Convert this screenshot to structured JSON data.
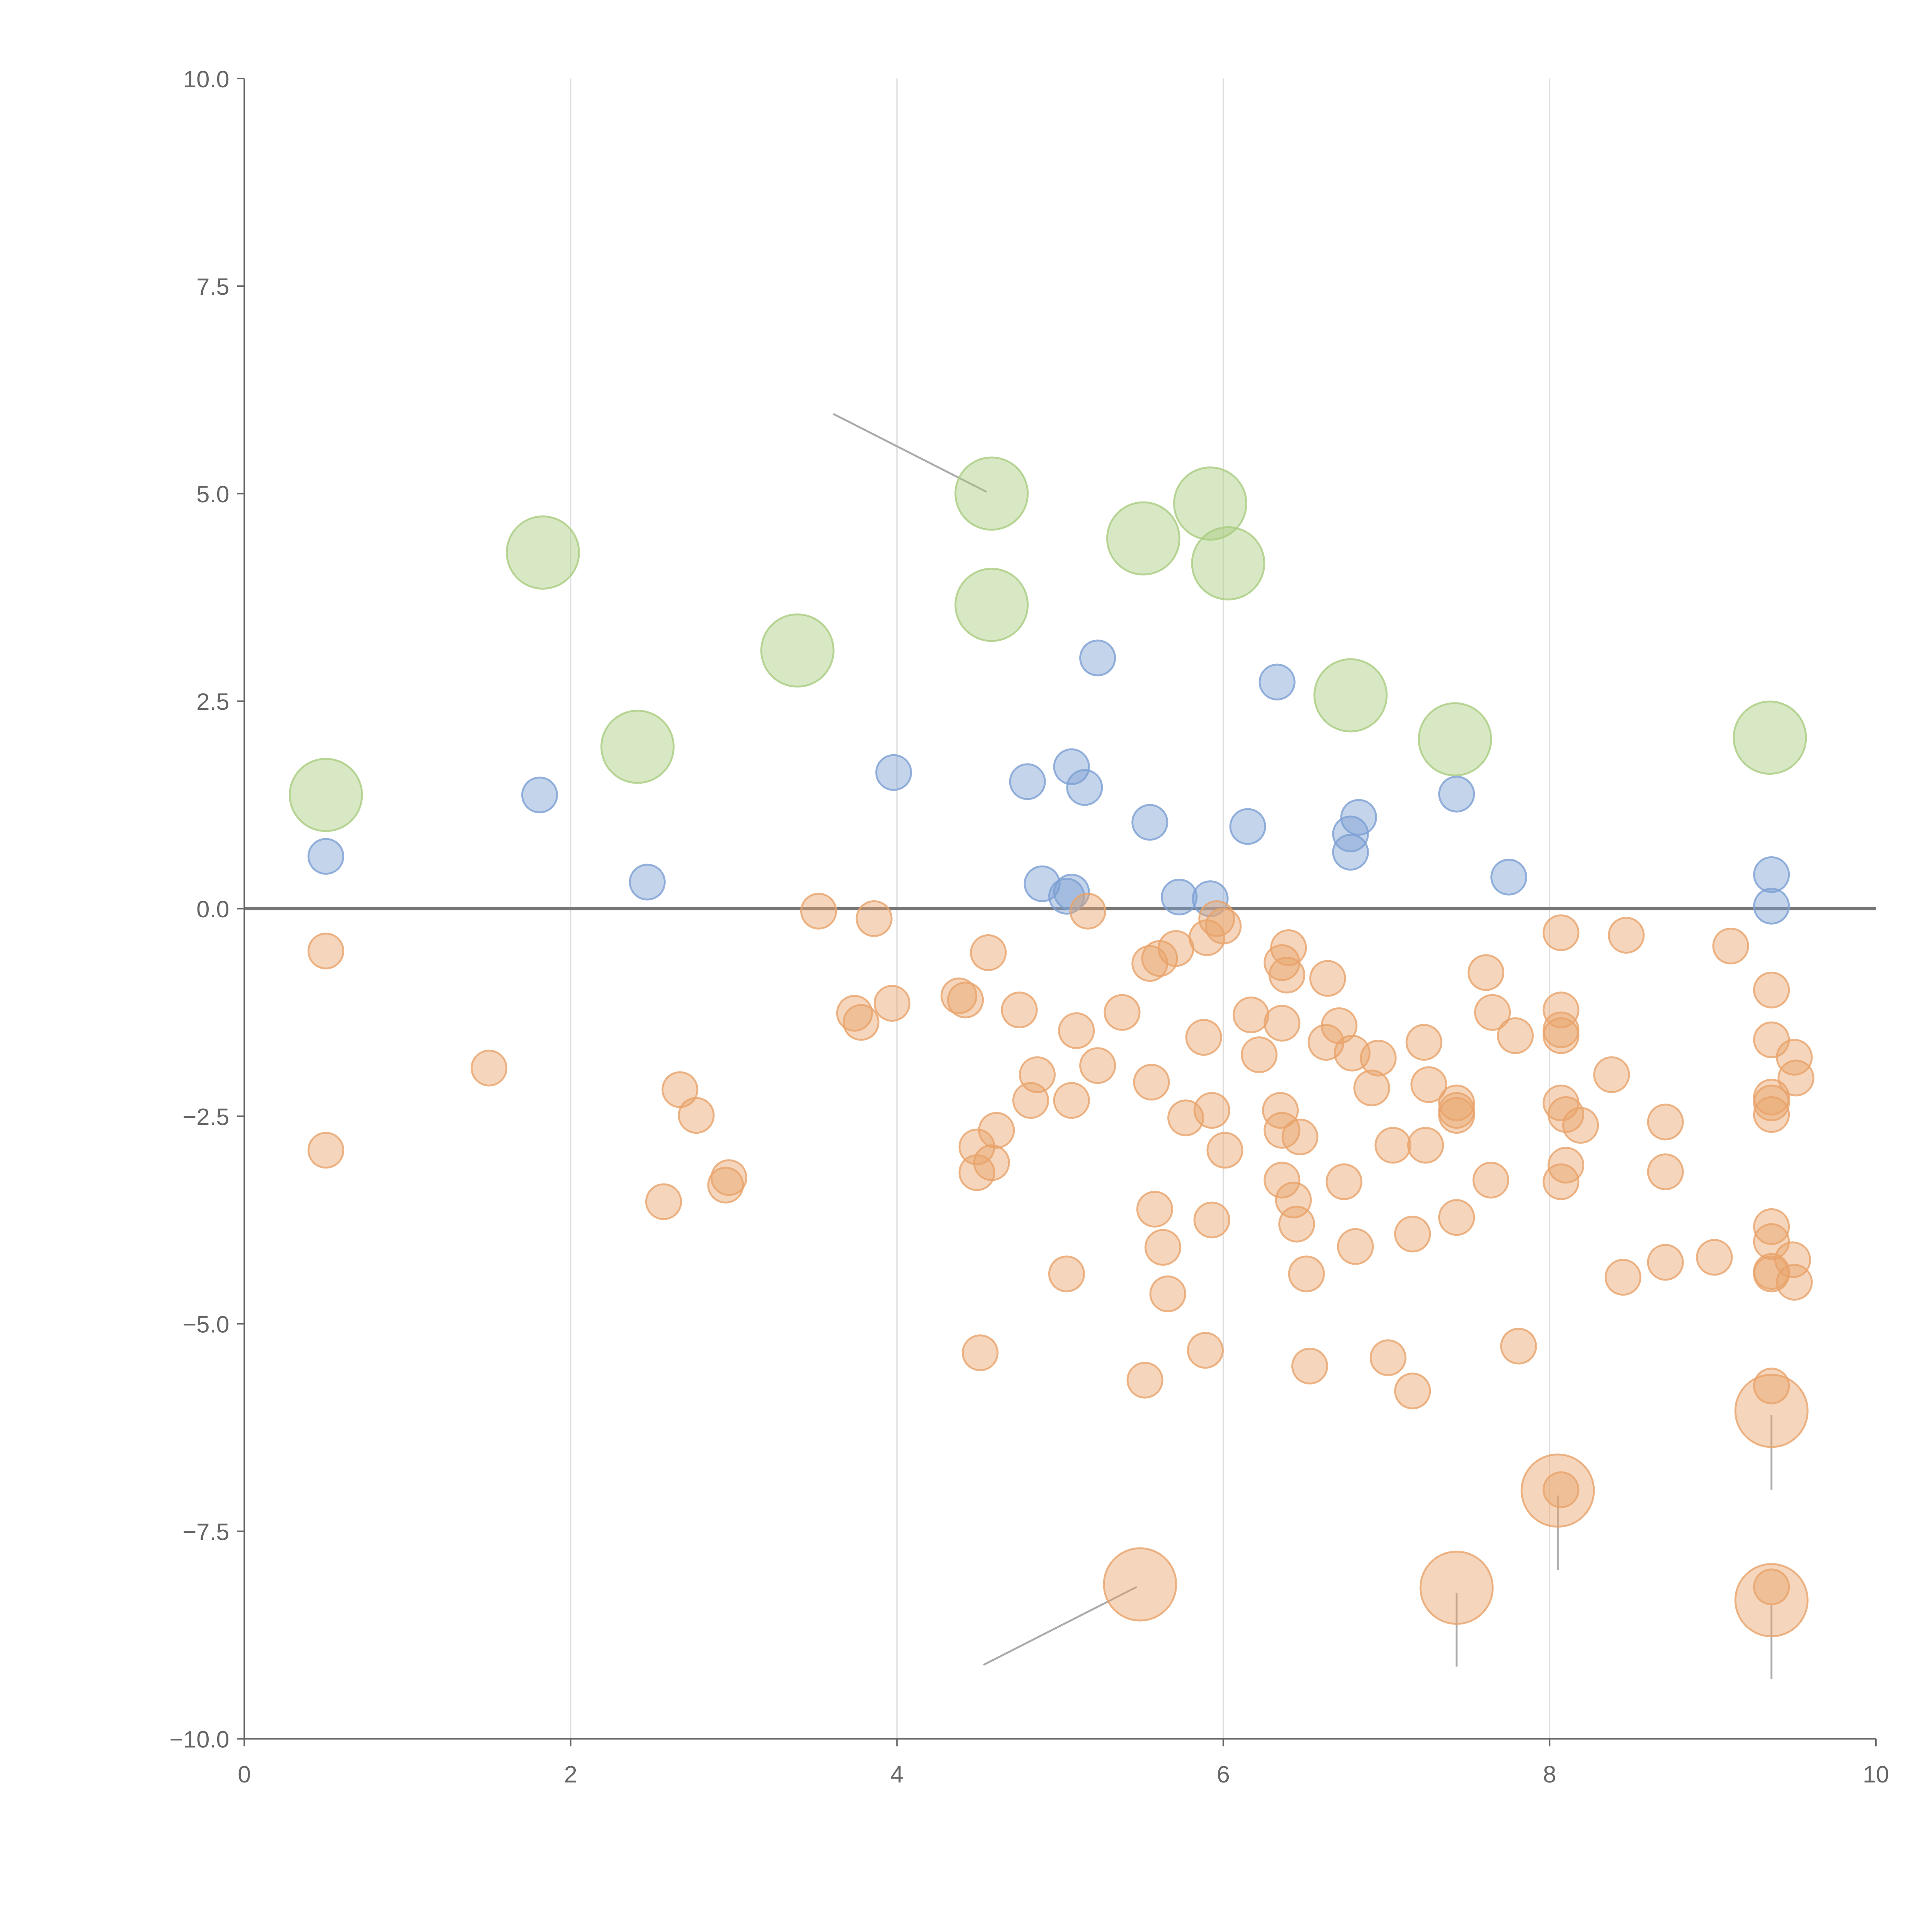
{
  "chart_data": {
    "type": "scatter",
    "title": "",
    "xlabel": "",
    "ylabel": "",
    "xlim": [
      0,
      10
    ],
    "ylim": [
      -10,
      10
    ],
    "grid": "vertical",
    "x_ticks": [
      "0",
      "2",
      "4",
      "6",
      "8",
      "10"
    ],
    "x_tick_values": [
      0,
      2,
      4,
      6,
      8,
      10
    ],
    "y_ticks": [
      "10.0",
      "7.5",
      "5.0",
      "2.5",
      "0.0",
      "−2.5",
      "−5.0",
      "−7.5",
      "−10.0"
    ],
    "y_tick_values": [
      10,
      7.5,
      5,
      2.5,
      0,
      -2.5,
      -5,
      -7.5,
      -10
    ],
    "reference_line_y": 0,
    "series": [
      {
        "name": "green-large",
        "color": "#a9cc7f",
        "size": "large",
        "points": [
          [
            0.5,
            1.37
          ],
          [
            1.83,
            4.29
          ],
          [
            2.41,
            1.95
          ],
          [
            3.39,
            3.11
          ],
          [
            4.58,
            5.0
          ],
          [
            4.58,
            3.66
          ],
          [
            5.51,
            4.46
          ],
          [
            5.92,
            4.88
          ],
          [
            6.03,
            4.16
          ],
          [
            6.78,
            2.57
          ],
          [
            7.42,
            2.04
          ],
          [
            9.35,
            2.06
          ]
        ]
      },
      {
        "name": "blue-small",
        "color": "#7c9fd3",
        "size": "small",
        "points": [
          [
            0.5,
            0.63
          ],
          [
            1.81,
            1.37
          ],
          [
            2.47,
            0.32
          ],
          [
            3.98,
            1.64
          ],
          [
            4.8,
            1.53
          ],
          [
            4.89,
            0.3
          ],
          [
            5.07,
            1.71
          ],
          [
            5.15,
            1.46
          ],
          [
            5.23,
            3.02
          ],
          [
            5.04,
            0.15
          ],
          [
            5.07,
            0.2
          ],
          [
            5.55,
            1.04
          ],
          [
            5.73,
            0.14
          ],
          [
            5.92,
            0.12
          ],
          [
            6.15,
            0.99
          ],
          [
            6.33,
            2.73
          ],
          [
            6.78,
            0.9
          ],
          [
            6.83,
            1.1
          ],
          [
            6.78,
            0.68
          ],
          [
            7.43,
            1.38
          ],
          [
            7.75,
            0.38
          ],
          [
            9.36,
            0.41
          ],
          [
            9.36,
            0.03
          ]
        ]
      },
      {
        "name": "orange-small",
        "color": "#e8a36a",
        "size": "small",
        "points": [
          [
            0.5,
            -0.51
          ],
          [
            0.5,
            -2.91
          ],
          [
            1.5,
            -1.92
          ],
          [
            2.67,
            -2.18
          ],
          [
            2.77,
            -2.49
          ],
          [
            2.57,
            -3.53
          ],
          [
            2.97,
            -3.24
          ],
          [
            2.95,
            -3.33
          ],
          [
            3.52,
            -0.03
          ],
          [
            3.86,
            -0.12
          ],
          [
            3.74,
            -1.26
          ],
          [
            3.78,
            -1.37
          ],
          [
            3.97,
            -1.14
          ],
          [
            4.38,
            -1.05
          ],
          [
            4.42,
            -1.1
          ],
          [
            4.56,
            -0.53
          ],
          [
            4.75,
            -1.22
          ],
          [
            4.49,
            -2.87
          ],
          [
            4.49,
            -3.18
          ],
          [
            4.58,
            -3.06
          ],
          [
            4.61,
            -2.67
          ],
          [
            4.82,
            -2.31
          ],
          [
            4.86,
            -2.0
          ],
          [
            5.07,
            -2.31
          ],
          [
            5.1,
            -1.47
          ],
          [
            5.17,
            -0.03
          ],
          [
            5.23,
            -1.89
          ],
          [
            5.38,
            -1.25
          ],
          [
            4.51,
            -5.35
          ],
          [
            5.04,
            -4.4
          ],
          [
            5.52,
            -5.68
          ],
          [
            5.56,
            -2.09
          ],
          [
            5.58,
            -3.62
          ],
          [
            5.63,
            -4.08
          ],
          [
            5.66,
            -4.64
          ],
          [
            5.55,
            -0.66
          ],
          [
            5.61,
            -0.6
          ],
          [
            5.71,
            -0.48
          ],
          [
            5.77,
            -2.52
          ],
          [
            5.88,
            -1.55
          ],
          [
            5.89,
            -5.32
          ],
          [
            5.9,
            -0.35
          ],
          [
            5.93,
            -2.43
          ],
          [
            5.93,
            -3.75
          ],
          [
            5.96,
            -0.12
          ],
          [
            6.0,
            -0.21
          ],
          [
            6.01,
            -2.91
          ],
          [
            6.17,
            -1.28
          ],
          [
            6.22,
            -1.76
          ],
          [
            6.35,
            -2.43
          ],
          [
            6.36,
            -3.27
          ],
          [
            6.36,
            -1.38
          ],
          [
            6.36,
            -0.65
          ],
          [
            6.36,
            -2.67
          ],
          [
            6.4,
            -0.47
          ],
          [
            6.39,
            -0.8
          ],
          [
            6.43,
            -3.51
          ],
          [
            6.45,
            -3.8
          ],
          [
            6.47,
            -2.75
          ],
          [
            6.51,
            -4.4
          ],
          [
            6.53,
            -5.51
          ],
          [
            6.64,
            -0.84
          ],
          [
            6.63,
            -1.61
          ],
          [
            6.71,
            -1.41
          ],
          [
            6.74,
            -3.29
          ],
          [
            6.79,
            -1.74
          ],
          [
            6.81,
            -4.07
          ],
          [
            6.91,
            -2.16
          ],
          [
            6.95,
            -1.8
          ],
          [
            7.01,
            -5.41
          ],
          [
            7.04,
            -2.85
          ],
          [
            7.16,
            -3.92
          ],
          [
            7.16,
            -5.81
          ],
          [
            7.23,
            -1.61
          ],
          [
            7.24,
            -2.85
          ],
          [
            7.26,
            -2.12
          ],
          [
            7.43,
            -2.34
          ],
          [
            7.43,
            -2.43
          ],
          [
            7.43,
            -2.49
          ],
          [
            7.43,
            -3.72
          ],
          [
            7.61,
            -0.77
          ],
          [
            7.65,
            -1.25
          ],
          [
            7.64,
            -3.27
          ],
          [
            7.79,
            -1.53
          ],
          [
            7.81,
            -5.27
          ],
          [
            8.07,
            -0.29
          ],
          [
            8.07,
            -1.22
          ],
          [
            8.07,
            -1.46
          ],
          [
            8.07,
            -1.53
          ],
          [
            8.07,
            -2.34
          ],
          [
            8.1,
            -2.48
          ],
          [
            8.1,
            -3.09
          ],
          [
            8.07,
            -3.29
          ],
          [
            8.19,
            -2.61
          ],
          [
            8.07,
            -7.0
          ],
          [
            8.38,
            -2.0
          ],
          [
            8.45,
            -4.44
          ],
          [
            8.47,
            -0.32
          ],
          [
            8.71,
            -2.57
          ],
          [
            8.71,
            -3.17
          ],
          [
            8.71,
            -4.26
          ],
          [
            9.01,
            -4.2
          ],
          [
            9.11,
            -0.45
          ],
          [
            9.36,
            -0.98
          ],
          [
            9.36,
            -1.58
          ],
          [
            9.36,
            -2.27
          ],
          [
            9.36,
            -2.34
          ],
          [
            9.36,
            -2.48
          ],
          [
            9.36,
            -3.83
          ],
          [
            9.36,
            -4.01
          ],
          [
            9.36,
            -4.37
          ],
          [
            9.36,
            -4.4
          ],
          [
            9.36,
            -5.75
          ],
          [
            9.36,
            -8.17
          ],
          [
            9.5,
            -1.79
          ],
          [
            9.51,
            -2.04
          ],
          [
            9.49,
            -4.23
          ],
          [
            9.5,
            -4.5
          ]
        ]
      },
      {
        "name": "orange-large",
        "color": "#e8a36a",
        "size": "large",
        "points": [
          [
            5.49,
            -8.14
          ],
          [
            7.43,
            -8.18
          ],
          [
            8.05,
            -7.01
          ],
          [
            9.36,
            -6.05
          ],
          [
            9.36,
            -8.33
          ]
        ]
      }
    ],
    "annotation_leaders": [
      [
        [
          3.61,
          5.96
        ],
        [
          4.55,
          5.02
        ]
      ],
      [
        [
          4.53,
          -9.11
        ],
        [
          5.47,
          -8.17
        ]
      ],
      [
        [
          7.43,
          -8.24
        ],
        [
          7.43,
          -9.13
        ]
      ],
      [
        [
          8.05,
          -7.07
        ],
        [
          8.05,
          -7.97
        ]
      ],
      [
        [
          9.36,
          -6.1
        ],
        [
          9.36,
          -7.0
        ]
      ],
      [
        [
          9.36,
          -8.39
        ],
        [
          9.36,
          -9.28
        ]
      ]
    ]
  }
}
